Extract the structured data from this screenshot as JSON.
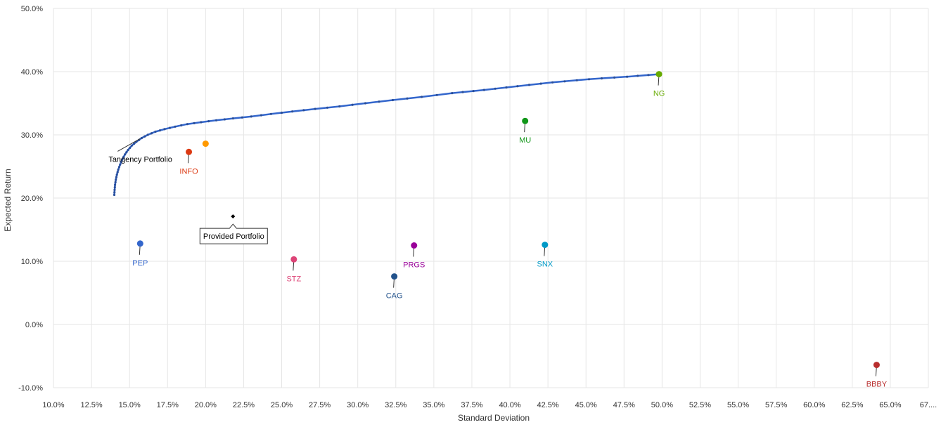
{
  "chart_data": {
    "type": "scatter",
    "xlabel": "Standard Deviation",
    "ylabel": "Expected Return",
    "xlim": [
      10.0,
      67.5
    ],
    "ylim": [
      -10.0,
      50.0
    ],
    "grid": true,
    "x_ticks": [
      "10.0%",
      "12.5%",
      "15.0%",
      "17.5%",
      "20.0%",
      "22.5%",
      "25.0%",
      "27.5%",
      "30.0%",
      "32.5%",
      "35.0%",
      "37.5%",
      "40.0%",
      "42.5%",
      "45.0%",
      "47.5%",
      "50.0%",
      "52.5%",
      "55.0%",
      "57.5%",
      "60.0%",
      "62.5%",
      "65.0%",
      "67...."
    ],
    "y_ticks": [
      "50.0%",
      "40.0%",
      "30.0%",
      "20.0%",
      "10.0%",
      "0.0%",
      "-10.0%"
    ],
    "frontier": {
      "color": "#3366cc",
      "x": [
        14.0,
        14.02,
        14.05,
        14.1,
        14.17,
        14.26,
        14.38,
        14.52,
        14.7,
        14.9,
        15.15,
        15.45,
        15.8,
        16.2,
        16.7,
        17.3,
        18.0,
        18.8,
        19.7,
        20.7,
        21.8,
        23.0,
        24.3,
        25.7,
        27.2,
        28.8,
        30.5,
        32.3,
        34.2,
        36.2,
        38.3,
        40.5,
        42.8,
        45.2,
        47.7,
        49.8
      ],
      "y": [
        20.5,
        21.3,
        22.1,
        22.9,
        23.7,
        24.5,
        25.3,
        26.1,
        26.9,
        27.6,
        28.3,
        28.9,
        29.5,
        30.0,
        30.5,
        30.9,
        31.3,
        31.7,
        32.0,
        32.3,
        32.6,
        32.9,
        33.3,
        33.7,
        34.1,
        34.5,
        35.0,
        35.5,
        36.0,
        36.6,
        37.1,
        37.7,
        38.3,
        38.8,
        39.2,
        39.6
      ]
    },
    "points": [
      {
        "name": "PEP",
        "x": 15.7,
        "y": 12.8,
        "color": "#3366cc"
      },
      {
        "name": "INFO",
        "x": 18.9,
        "y": 27.3,
        "color": "#dc3912"
      },
      {
        "name": "",
        "x": 20.0,
        "y": 28.6,
        "color": "#ff9900"
      },
      {
        "name": "STZ",
        "x": 25.8,
        "y": 10.3,
        "color": "#dd4477"
      },
      {
        "name": "CAG",
        "x": 32.4,
        "y": 7.6,
        "color": "#22528b"
      },
      {
        "name": "PRGS",
        "x": 33.7,
        "y": 12.5,
        "color": "#990099"
      },
      {
        "name": "MU",
        "x": 41.0,
        "y": 32.2,
        "color": "#109618"
      },
      {
        "name": "SNX",
        "x": 42.3,
        "y": 12.6,
        "color": "#0099c6"
      },
      {
        "name": "NG",
        "x": 49.8,
        "y": 39.6,
        "color": "#66aa00"
      },
      {
        "name": "BBBY",
        "x": 64.1,
        "y": -6.4,
        "color": "#b82e2e"
      }
    ],
    "annotations": {
      "tangency": {
        "text": "Tangency Portfolio",
        "x": 15.7,
        "y": 29.4
      },
      "provided": {
        "text": "Provided Portfolio",
        "x": 21.8,
        "y": 17.1
      }
    }
  }
}
